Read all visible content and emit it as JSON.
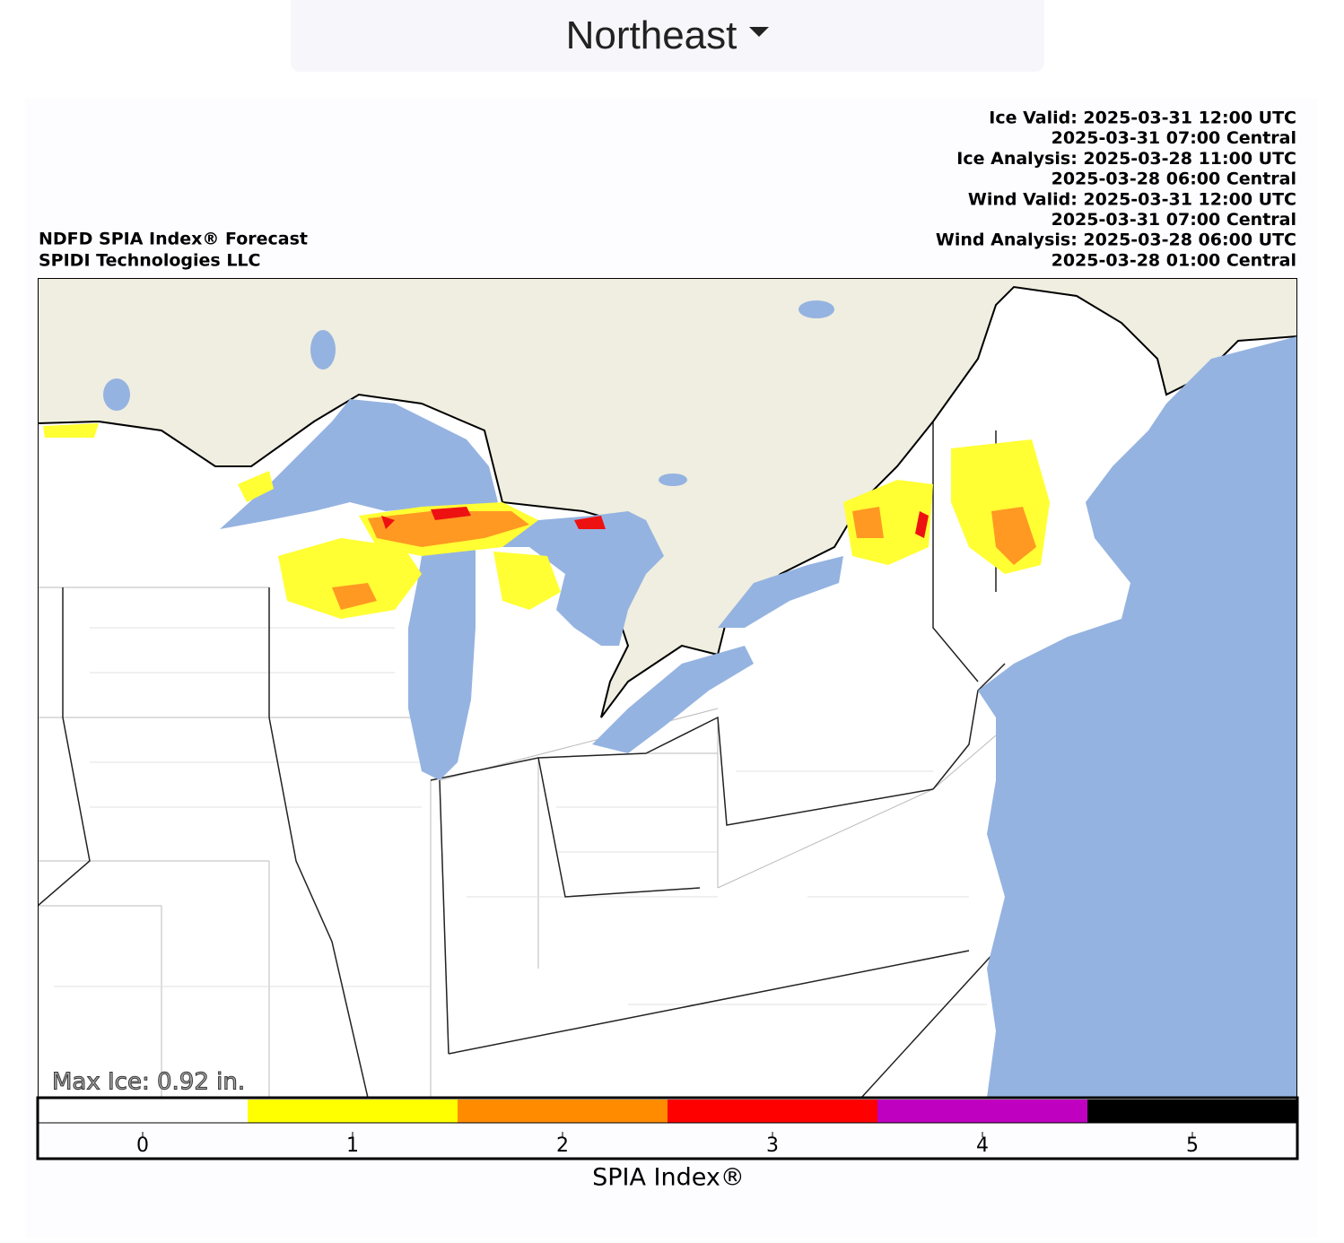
{
  "dropdown": {
    "label": "Northeast"
  },
  "header": {
    "left": [
      "NDFD SPIA Index® Forecast",
      "SPIDI Technologies LLC"
    ],
    "right": [
      "Ice Valid: 2025-03-31 12:00 UTC",
      "2025-03-31 07:00 Central",
      "Ice Analysis: 2025-03-28 11:00 UTC",
      "2025-03-28 06:00 Central",
      "Wind Valid: 2025-03-31 12:00 UTC",
      "2025-03-31 07:00 Central",
      "Wind Analysis: 2025-03-28 06:00 UTC",
      "2025-03-28 01:00 Central"
    ]
  },
  "map": {
    "annotation": "Max Ice: 0.92 in."
  },
  "colorbar": {
    "label": "SPIA Index®",
    "lim": [
      -0.5,
      5.5
    ],
    "ticks": [
      0,
      1,
      2,
      3,
      4,
      5
    ],
    "colors": [
      "#ffffff",
      "#ffff00",
      "#ff8c00",
      "#ff0000",
      "#c000c0",
      "#000000"
    ]
  }
}
